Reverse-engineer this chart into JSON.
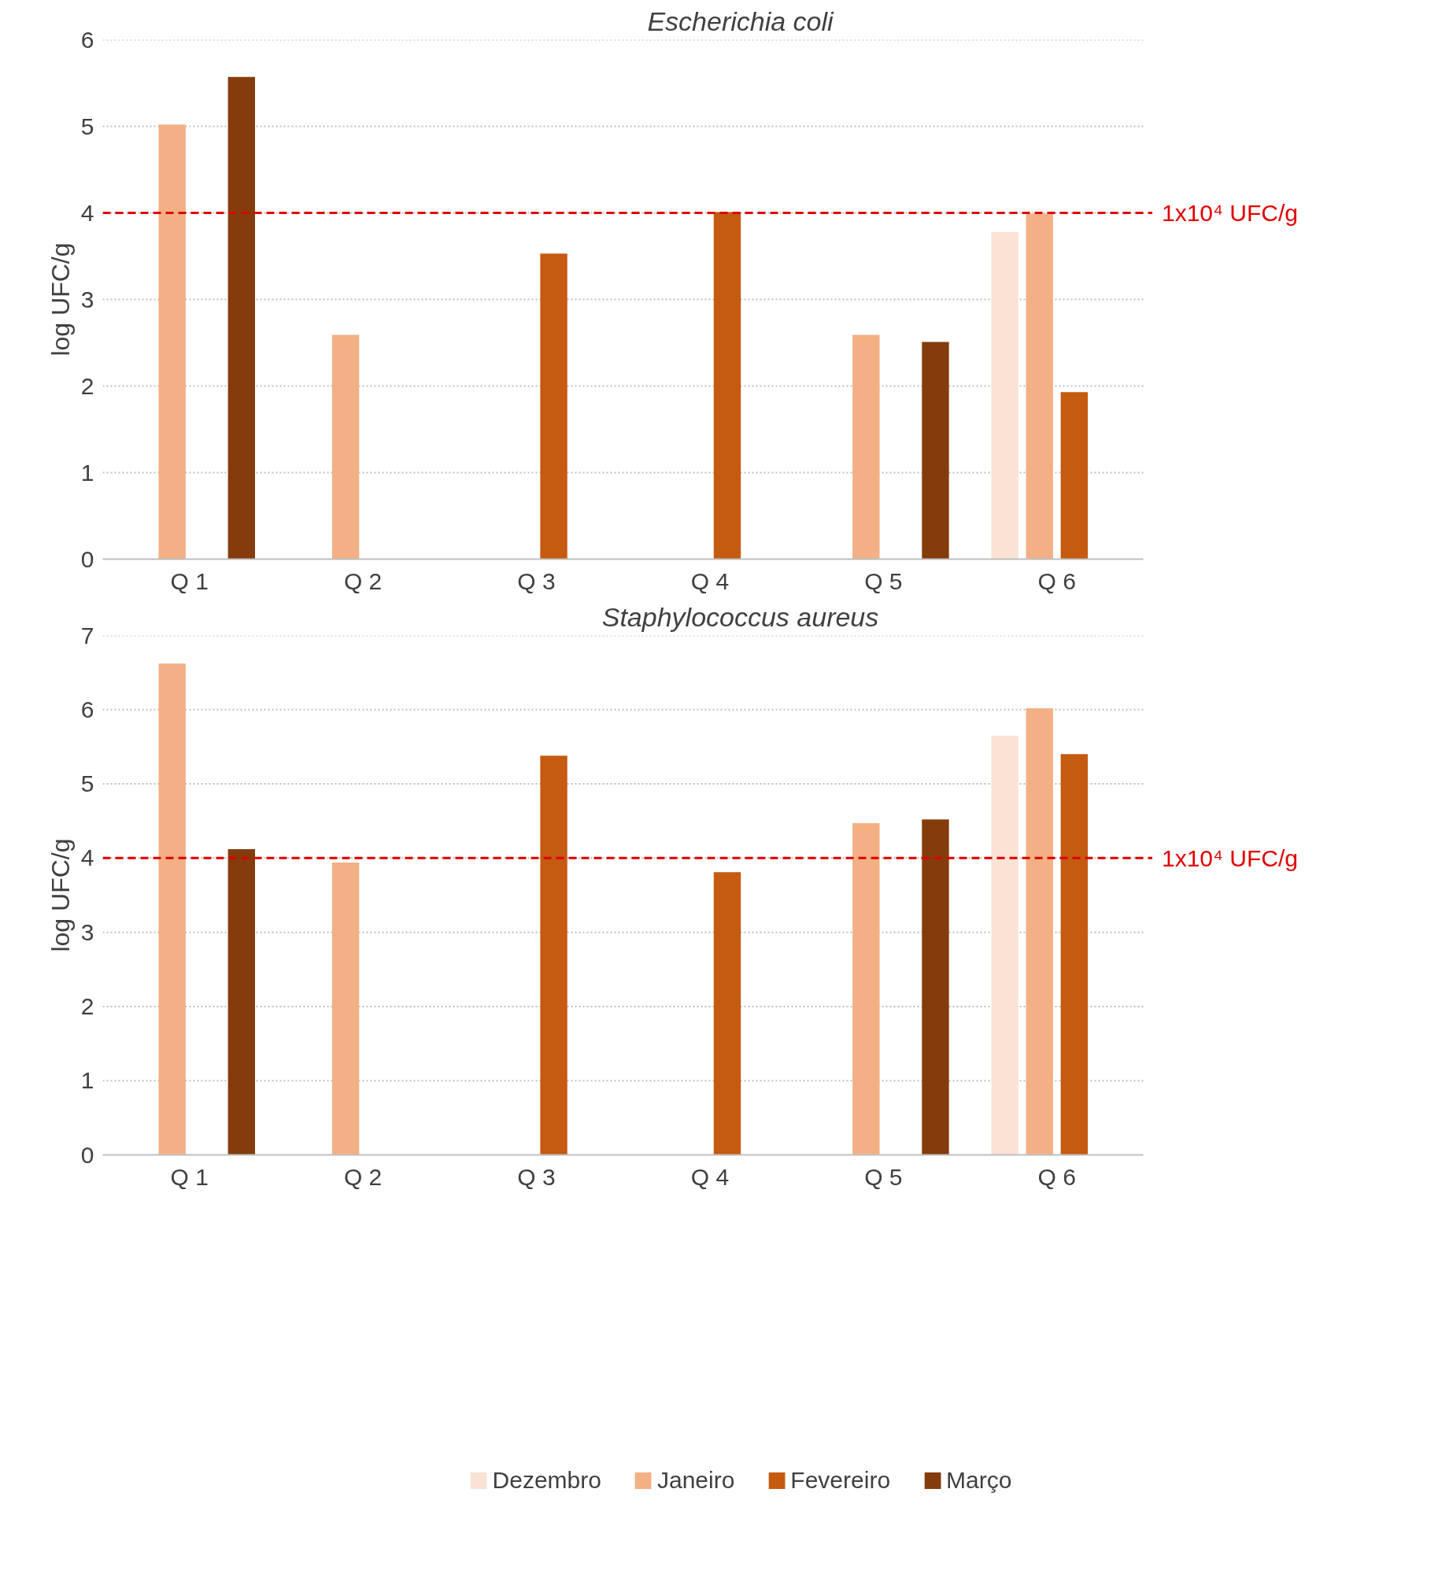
{
  "chart_data": [
    {
      "type": "bar",
      "title": "Escherichia coli",
      "ylabel": "log UFC/g",
      "categories": [
        "Q 1",
        "Q 2",
        "Q 3",
        "Q 4",
        "Q 5",
        "Q 6"
      ],
      "series": [
        {
          "color": "#f9e3d5",
          "values": [
            null,
            null,
            null,
            null,
            null,
            3.78
          ]
        },
        {
          "color": "#f2b084",
          "values": [
            5.02,
            2.59,
            null,
            null,
            2.59,
            3.99
          ]
        },
        {
          "color": "#c55a11",
          "values": [
            null,
            null,
            3.53,
            4.01,
            null,
            1.93
          ]
        },
        {
          "color": "#843c0c",
          "values": [
            5.57,
            null,
            null,
            null,
            2.51,
            null
          ]
        }
      ],
      "ylim": [
        0,
        6
      ],
      "yticks": [
        0,
        1,
        2,
        3,
        4,
        5,
        6
      ],
      "grid": "y",
      "legend": false,
      "ref_lines": [
        {
          "axis": "y",
          "value": 4,
          "label": "1x10⁴ UFC/g",
          "color": "#e00000",
          "line_style": "dashed"
        }
      ]
    },
    {
      "type": "bar",
      "title": "Staphylococcus aureus",
      "ylabel": "log UFC/g",
      "categories": [
        "Q 1",
        "Q 2",
        "Q 3",
        "Q 4",
        "Q 5",
        "Q 6"
      ],
      "series": [
        {
          "name": "Dezembro",
          "color": "#f9e3d5",
          "values": [
            null,
            null,
            null,
            null,
            null,
            5.65
          ]
        },
        {
          "name": "Janeiro",
          "color": "#f2b084",
          "values": [
            6.62,
            3.94,
            null,
            null,
            4.47,
            6.02
          ]
        },
        {
          "name": "Fevereiro",
          "color": "#c55a11",
          "values": [
            null,
            null,
            5.38,
            3.81,
            null,
            5.4
          ]
        },
        {
          "name": "Março",
          "color": "#843c0c",
          "values": [
            4.12,
            null,
            null,
            null,
            4.52,
            null
          ]
        }
      ],
      "ylim": [
        0,
        7
      ],
      "yticks": [
        0,
        1,
        2,
        3,
        4,
        5,
        6,
        7
      ],
      "grid": "y",
      "legend": "bottom",
      "ref_lines": [
        {
          "axis": "y",
          "value": 4,
          "label": "1x10⁴ UFC/g",
          "color": "#e00000",
          "line_style": "dashed"
        }
      ]
    }
  ]
}
